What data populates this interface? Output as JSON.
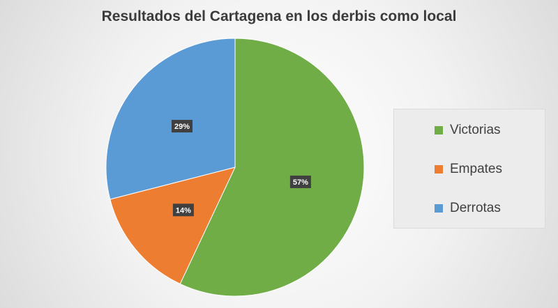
{
  "chart_data": {
    "type": "pie",
    "title": "Resultados del Cartagena en los derbis como local",
    "categories": [
      "Victorias",
      "Empates",
      "Derrotas"
    ],
    "values": [
      57,
      14,
      29
    ],
    "labels": [
      "57%",
      "14%",
      "29%"
    ],
    "colors": [
      "#70ad47",
      "#ed7d31",
      "#5b9bd5"
    ],
    "legend_position": "right"
  }
}
